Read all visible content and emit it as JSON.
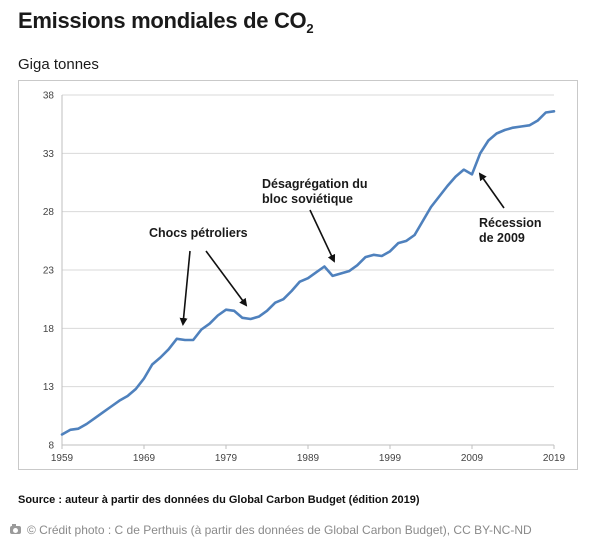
{
  "header": {
    "title_main": "Emissions mondiales de CO",
    "title_sub": "2",
    "unit": "Giga tonnes"
  },
  "chart_data": {
    "type": "line",
    "title": "Emissions mondiales de CO2",
    "ylabel": "Giga tonnes",
    "xlabel": "",
    "xlim": [
      1959,
      2019
    ],
    "ylim": [
      8,
      38
    ],
    "yticks": [
      8,
      13,
      18,
      23,
      28,
      33,
      38
    ],
    "xticks": [
      1959,
      1969,
      1979,
      1989,
      1999,
      2009,
      2019
    ],
    "grid": "horizontal",
    "line_color": "#4f81bd",
    "series": [
      {
        "x": [
          1959,
          1960,
          1961,
          1962,
          1963,
          1964,
          1965,
          1966,
          1967,
          1968,
          1969,
          1970,
          1971,
          1972,
          1973,
          1974,
          1975,
          1976,
          1977,
          1978,
          1979,
          1980,
          1981,
          1982,
          1983,
          1984,
          1985,
          1986,
          1987,
          1988,
          1989,
          1990,
          1991,
          1992,
          1993,
          1994,
          1995,
          1996,
          1997,
          1998,
          1999,
          2000,
          2001,
          2002,
          2003,
          2004,
          2005,
          2006,
          2007,
          2008,
          2009,
          2010,
          2011,
          2012,
          2013,
          2014,
          2015,
          2016,
          2017,
          2018,
          2019
        ],
        "values": [
          8.9,
          9.3,
          9.4,
          9.8,
          10.3,
          10.8,
          11.3,
          11.8,
          12.2,
          12.8,
          13.7,
          14.9,
          15.5,
          16.2,
          17.1,
          17.0,
          17.0,
          17.9,
          18.4,
          19.1,
          19.6,
          19.5,
          18.9,
          18.8,
          19.0,
          19.5,
          20.2,
          20.5,
          21.2,
          22.0,
          22.3,
          22.8,
          23.3,
          22.5,
          22.7,
          22.9,
          23.4,
          24.1,
          24.3,
          24.2,
          24.6,
          25.3,
          25.5,
          26.0,
          27.2,
          28.4,
          29.3,
          30.2,
          31.0,
          31.6,
          31.2,
          33.0,
          34.1,
          34.7,
          35.0,
          35.2,
          35.3,
          35.4,
          35.8,
          36.5,
          36.6
        ]
      }
    ],
    "annotations": [
      {
        "id": "oil",
        "lines": [
          "Chocs pétroliers"
        ]
      },
      {
        "id": "ussr",
        "lines": [
          "Désagrégation du",
          "bloc soviétique"
        ]
      },
      {
        "id": "crisis",
        "lines": [
          "Récession",
          "de 2009"
        ]
      }
    ]
  },
  "footer": {
    "source": "Source : auteur à partir des données du Global Carbon Budget (édition 2019)",
    "credit": "© Crédit photo : C de Perthuis (à partir des données de Global Carbon Budget), CC BY-NC-ND"
  },
  "colors": {
    "line": "#4f81bd",
    "grid": "#d9d9d9",
    "frame": "#c9c9c9"
  }
}
